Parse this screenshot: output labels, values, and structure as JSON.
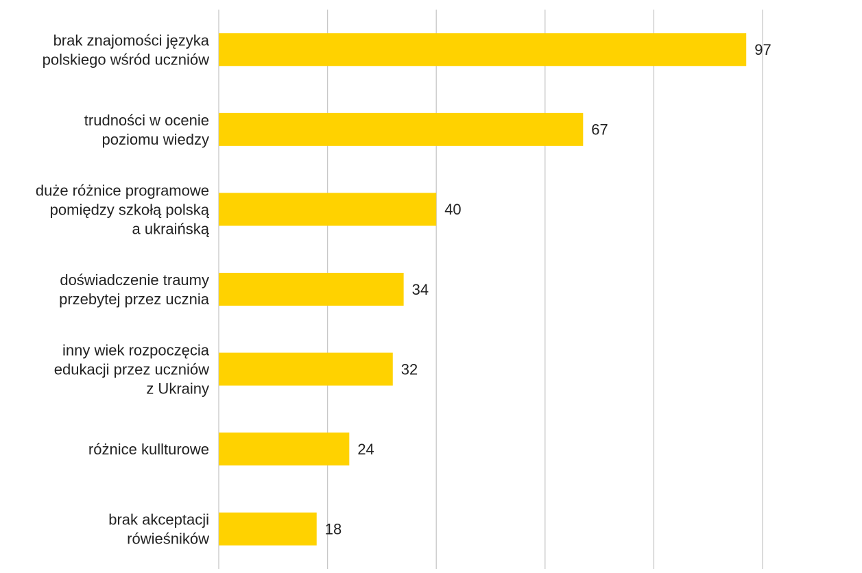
{
  "chart_data": {
    "type": "barh",
    "categories": [
      "brak znajomości języka\npolskiego wśród uczniów",
      "trudności w ocenie\npoziomu wiedzy",
      "duże różnice programowe\npomiędzy szkołą polską\na ukraińską",
      "doświadczenie traumy\nprzebytej przez ucznia",
      "inny wiek rozpoczęcia\nedukacji przez uczniów\nz Ukrainy",
      "różnice kullturowe",
      "brak akceptacji\nrówieśników"
    ],
    "values": [
      97,
      67,
      40,
      34,
      32,
      24,
      18
    ],
    "color": "#ffd200",
    "xlim": [
      0,
      100
    ],
    "xticks": [
      0,
      20,
      40,
      60,
      80,
      100
    ],
    "grid": true
  }
}
